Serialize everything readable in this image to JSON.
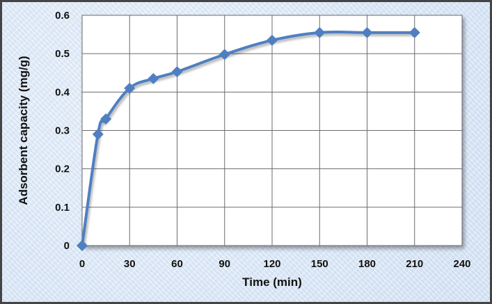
{
  "chart_data": {
    "type": "line",
    "title": "",
    "xlabel": "Time (min)",
    "ylabel": "Adsorbent  capacity (mg/g)",
    "xlim": [
      0,
      240
    ],
    "ylim": [
      0,
      0.6
    ],
    "x_ticks": [
      "0",
      "30",
      "60",
      "90",
      "120",
      "150",
      "180",
      "210",
      "240"
    ],
    "y_ticks": [
      "0",
      "0.1",
      "0.2",
      "0.3",
      "0.4",
      "0.5",
      "0.6"
    ],
    "grid": true,
    "legend": "none",
    "series": [
      {
        "x": [
          0,
          10,
          15,
          30,
          45,
          60,
          90,
          120,
          150,
          180,
          210
        ],
        "y": [
          0,
          0.29,
          0.33,
          0.41,
          0.435,
          0.453,
          0.498,
          0.535,
          0.555,
          0.555,
          0.555
        ],
        "color": "#4f7fc1",
        "marker": "diamond"
      }
    ]
  }
}
